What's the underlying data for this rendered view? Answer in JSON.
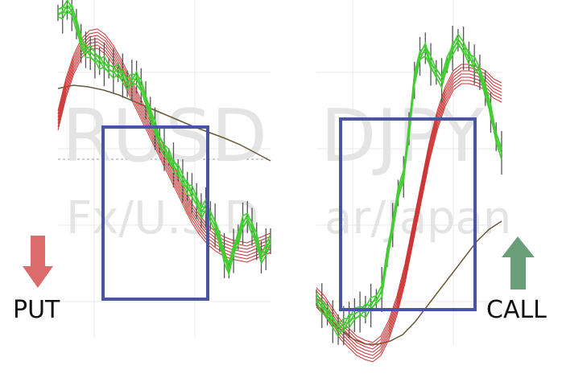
{
  "labels": {
    "put": "PUT",
    "call": "CALL"
  },
  "colors": {
    "put_arrow": "#dc6b6b",
    "call_arrow": "#6a9e78",
    "highlight_box": "#4a55a2",
    "price_bars": "#555555",
    "fast_ma": "#44cc33",
    "slow_ma": "#cc3333",
    "long_ma": "#6b5a3a",
    "grid": "#e8e8e8"
  },
  "chart_data": [
    {
      "type": "line",
      "name": "",
      "watermark_lines": [
        "RUSD",
        "Fx/U.S.D"
      ],
      "signal": "PUT",
      "description_of_trend": "downtrend",
      "price_path": [
        16,
        14,
        10,
        12,
        30,
        54,
        62,
        66,
        72,
        76,
        80,
        85,
        88,
        90,
        94,
        104,
        100,
        96,
        108,
        125,
        140,
        160,
        175,
        185,
        195,
        205,
        212,
        225,
        232,
        240,
        250,
        262,
        258,
        268,
        280,
        300,
        318,
        335,
        312,
        295,
        278,
        270,
        282,
        300,
        320,
        310,
        300
      ],
      "slow_ma_path": [
        150,
        110,
        80,
        60,
        50,
        48,
        55,
        68,
        85,
        105,
        125,
        145,
        165,
        185,
        205,
        225,
        245,
        265,
        280,
        292,
        300,
        306,
        310,
        312,
        314,
        310,
        306,
        302
      ],
      "long_ma_path": [
        110,
        106,
        108,
        112,
        118,
        126,
        134,
        142,
        150,
        158,
        165,
        172,
        180,
        190,
        200
      ]
    },
    {
      "type": "line",
      "name": "",
      "watermark_lines": [
        "DJPY",
        "ar/Japan"
      ],
      "signal": "CALL",
      "description_of_trend": "uptrend",
      "price_path": [
        370,
        380,
        390,
        400,
        410,
        405,
        398,
        392,
        388,
        385,
        380,
        372,
        360,
        320,
        280,
        240,
        220,
        160,
        100,
        70,
        60,
        80,
        90,
        100,
        80,
        60,
        50,
        60,
        70,
        80,
        90,
        110,
        140,
        170,
        190
      ],
      "slow_ma_path": [
        370,
        380,
        395,
        410,
        420,
        430,
        435,
        438,
        430,
        410,
        380,
        340,
        290,
        240,
        190,
        150,
        120,
        100,
        92,
        92,
        95,
        100,
        110,
        115
      ],
      "long_ma_path": [
        380,
        395,
        410,
        422,
        428,
        428,
        424,
        416,
        400,
        380,
        360,
        340,
        320,
        300,
        285,
        275
      ]
    }
  ]
}
